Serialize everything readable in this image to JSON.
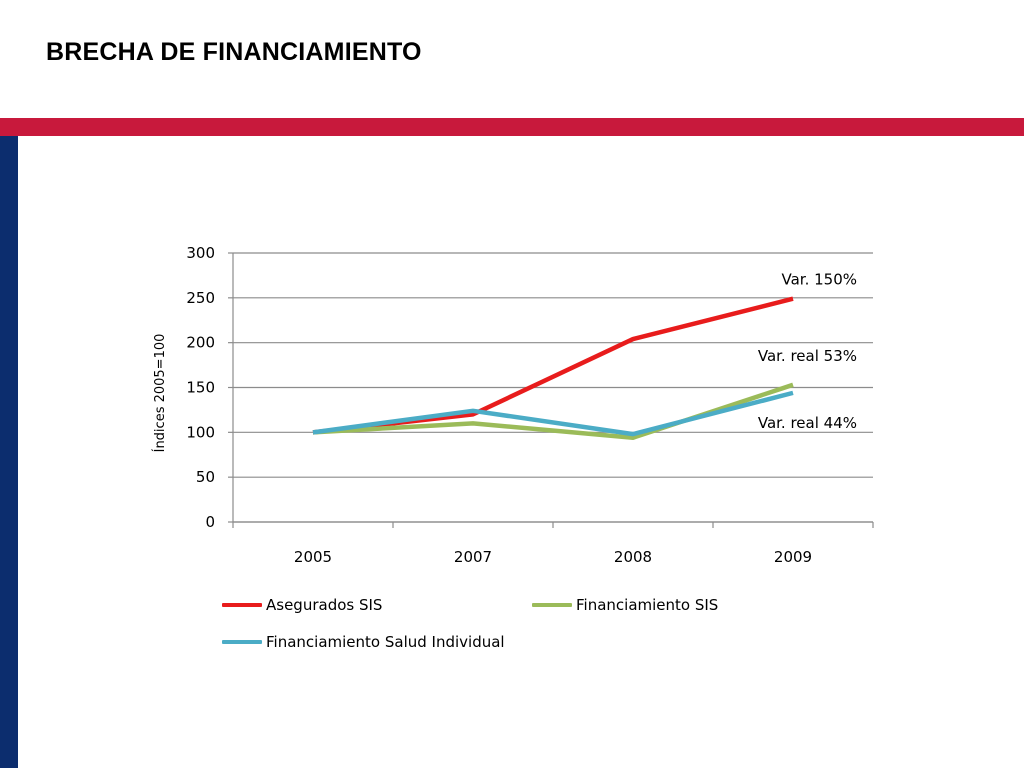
{
  "slide": {
    "title": "BRECHA DE FINANCIAMIENTO",
    "accent_color": "#c8193c",
    "side_color": "#0c2d6e"
  },
  "chart_data": {
    "type": "line",
    "categories": [
      "2005",
      "2007",
      "2008",
      "2009"
    ],
    "ylabel": "Índices 2005=100",
    "xlabel": "",
    "ylim": [
      0,
      300
    ],
    "yticks": [
      0,
      50,
      100,
      150,
      200,
      250,
      300
    ],
    "grid": true,
    "legend_position": "bottom",
    "series": [
      {
        "name": "Asegurados SIS",
        "values": [
          100,
          120,
          204,
          249
        ],
        "color": "#e81c1c"
      },
      {
        "name": "Financiamiento SIS",
        "values": [
          100,
          110,
          94,
          153
        ],
        "color": "#9bbb59"
      },
      {
        "name": "Financiamiento Salud Individual",
        "values": [
          100,
          124,
          98,
          144
        ],
        "color": "#4bacc6"
      }
    ],
    "annotations": [
      {
        "text": "Var. 150%",
        "series": "Asegurados SIS"
      },
      {
        "text": "Var. real 53%",
        "series": "Financiamiento SIS"
      },
      {
        "text": "Var. real 44%",
        "series": "Financiamiento Salud Individual"
      }
    ]
  }
}
